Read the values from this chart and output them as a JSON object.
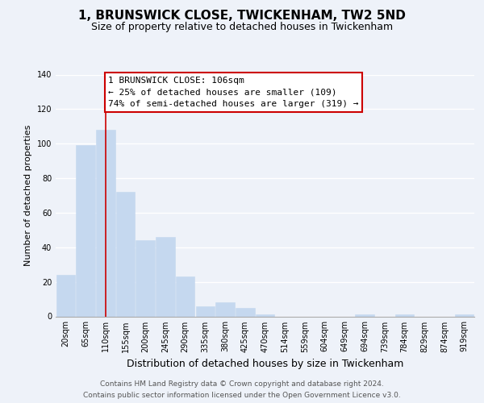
{
  "title": "1, BRUNSWICK CLOSE, TWICKENHAM, TW2 5ND",
  "subtitle": "Size of property relative to detached houses in Twickenham",
  "xlabel": "Distribution of detached houses by size in Twickenham",
  "ylabel": "Number of detached properties",
  "bar_labels": [
    "20sqm",
    "65sqm",
    "110sqm",
    "155sqm",
    "200sqm",
    "245sqm",
    "290sqm",
    "335sqm",
    "380sqm",
    "425sqm",
    "470sqm",
    "514sqm",
    "559sqm",
    "604sqm",
    "649sqm",
    "694sqm",
    "739sqm",
    "784sqm",
    "829sqm",
    "874sqm",
    "919sqm"
  ],
  "bar_values": [
    24,
    99,
    108,
    72,
    44,
    46,
    23,
    6,
    8,
    5,
    1,
    0,
    0,
    0,
    0,
    1,
    0,
    1,
    0,
    0,
    1
  ],
  "bar_color": "#c5d8ef",
  "bar_edge_color": "#c5d8ef",
  "vline_x": 2.0,
  "vline_color": "#cc0000",
  "annotation_label": "1 BRUNSWICK CLOSE: 106sqm",
  "annotation_line1": "← 25% of detached houses are smaller (109)",
  "annotation_line2": "74% of semi-detached houses are larger (319) →",
  "annotation_box_edgecolor": "#cc0000",
  "annotation_box_facecolor": "#ffffff",
  "ylim": [
    0,
    140
  ],
  "yticks": [
    0,
    20,
    40,
    60,
    80,
    100,
    120,
    140
  ],
  "background_color": "#eef2f9",
  "plot_bg_color": "#eef2f9",
  "footer_line1": "Contains HM Land Registry data © Crown copyright and database right 2024.",
  "footer_line2": "Contains public sector information licensed under the Open Government Licence v3.0.",
  "title_fontsize": 11,
  "subtitle_fontsize": 9,
  "xlabel_fontsize": 9,
  "ylabel_fontsize": 8,
  "tick_fontsize": 7,
  "annotation_fontsize": 8,
  "footer_fontsize": 6.5
}
